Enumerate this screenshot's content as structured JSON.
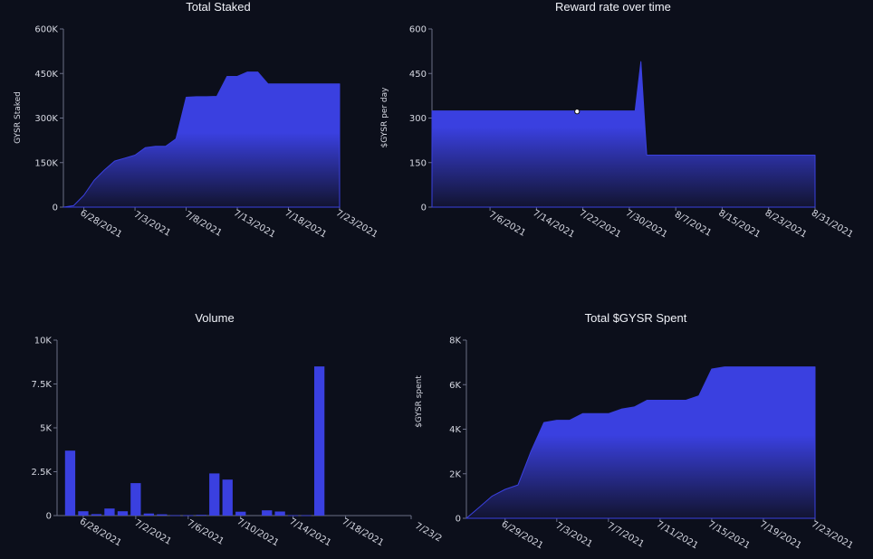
{
  "colors": {
    "background": "#0c0f1b",
    "fill": "#3a40e0",
    "fill_dark": "#121430",
    "axis": "#6a6f86"
  },
  "chart_data": [
    {
      "id": "total-staked",
      "type": "area",
      "title": "Total Staked",
      "ylabel": "GYSR Staked",
      "ylim": [
        0,
        600000
      ],
      "yticks": [
        0,
        150000,
        300000,
        450000,
        600000
      ],
      "ytick_labels": [
        "0",
        "150K",
        "300K",
        "450K",
        "600K"
      ],
      "xlim": [
        "2021-06-26",
        "2021-07-23"
      ],
      "xticks": [
        "2021-06-28",
        "2021-07-03",
        "2021-07-08",
        "2021-07-13",
        "2021-07-18",
        "2021-07-23"
      ],
      "xtick_labels": [
        "6/28/2021",
        "7/3/2021",
        "7/8/2021",
        "7/13/2021",
        "7/18/2021",
        "7/23/2021"
      ],
      "x": [
        "2021-06-26",
        "2021-06-27",
        "2021-06-28",
        "2021-06-29",
        "2021-06-30",
        "2021-07-01",
        "2021-07-02",
        "2021-07-03",
        "2021-07-04",
        "2021-07-05",
        "2021-07-06",
        "2021-07-07",
        "2021-07-08",
        "2021-07-09",
        "2021-07-10",
        "2021-07-11",
        "2021-07-12",
        "2021-07-13",
        "2021-07-14",
        "2021-07-15",
        "2021-07-16",
        "2021-07-17",
        "2021-07-18",
        "2021-07-19",
        "2021-07-20",
        "2021-07-21",
        "2021-07-22",
        "2021-07-23"
      ],
      "values": [
        0,
        5000,
        40000,
        90000,
        125000,
        155000,
        165000,
        175000,
        200000,
        205000,
        205000,
        230000,
        370000,
        372000,
        372000,
        373000,
        440000,
        440000,
        455000,
        455000,
        415000,
        415000,
        415000,
        415000,
        415000,
        415000,
        415000,
        415000
      ]
    },
    {
      "id": "reward-rate",
      "type": "area",
      "title": "Reward rate over time",
      "ylabel": "$GYSR per day",
      "ylim": [
        0,
        600
      ],
      "yticks": [
        0,
        150,
        300,
        450,
        600
      ],
      "ytick_labels": [
        "0",
        "150",
        "300",
        "450",
        "600"
      ],
      "xlim": [
        "2021-06-26",
        "2021-08-31"
      ],
      "xticks": [
        "2021-07-06",
        "2021-07-14",
        "2021-07-22",
        "2021-07-30",
        "2021-08-07",
        "2021-08-15",
        "2021-08-23",
        "2021-08-31"
      ],
      "xtick_labels": [
        "7/6/2021",
        "7/14/2021",
        "7/22/2021",
        "7/30/2021",
        "8/7/2021",
        "8/15/2021",
        "8/23/2021",
        "8/31/2021"
      ],
      "x": [
        "2021-06-26",
        "2021-07-31",
        "2021-08-01",
        "2021-08-02",
        "2021-08-03",
        "2021-08-31"
      ],
      "values": [
        324,
        324,
        490,
        175,
        175,
        175
      ],
      "marker": {
        "x": "2021-07-21",
        "y": 322
      }
    },
    {
      "id": "volume",
      "type": "bar",
      "title": "Volume",
      "ylabel": "",
      "ylim": [
        0,
        10000
      ],
      "yticks": [
        0,
        2500,
        5000,
        7500,
        10000
      ],
      "ytick_labels": [
        "0",
        "2.5K",
        "5K",
        "7.5K",
        "10K"
      ],
      "xlim": [
        "2021-06-26",
        "2021-07-23"
      ],
      "xticks": [
        "2021-06-28",
        "2021-07-02",
        "2021-07-06",
        "2021-07-10",
        "2021-07-14",
        "2021-07-18",
        "2021-07-23"
      ],
      "xtick_labels": [
        "6/28/2021",
        "7/2/2021",
        "7/6/2021",
        "7/10/2021",
        "7/14/2021",
        "7/18/2021",
        "7/23/2"
      ],
      "x": [
        "2021-06-27",
        "2021-06-28",
        "2021-06-29",
        "2021-06-30",
        "2021-07-01",
        "2021-07-02",
        "2021-07-03",
        "2021-07-04",
        "2021-07-05",
        "2021-07-06",
        "2021-07-07",
        "2021-07-08",
        "2021-07-09",
        "2021-07-10",
        "2021-07-11",
        "2021-07-12",
        "2021-07-13",
        "2021-07-14",
        "2021-07-15",
        "2021-07-16",
        "2021-07-17",
        "2021-07-18",
        "2021-07-19",
        "2021-07-20",
        "2021-07-21",
        "2021-07-22"
      ],
      "values": [
        3700,
        250,
        80,
        400,
        250,
        1850,
        120,
        70,
        20,
        20,
        40,
        2400,
        2050,
        220,
        0,
        300,
        230,
        20,
        20,
        8500,
        0,
        0,
        0,
        0,
        0,
        0
      ]
    },
    {
      "id": "gysr-spent",
      "type": "area",
      "title": "Total $GYSR Spent",
      "ylabel": "$GYSR spent",
      "ylim": [
        0,
        8000
      ],
      "yticks": [
        0,
        2000,
        4000,
        6000,
        8000
      ],
      "ytick_labels": [
        "0",
        "2K",
        "4K",
        "6K",
        "8K"
      ],
      "xlim": [
        "2021-06-26",
        "2021-07-23"
      ],
      "xticks": [
        "2021-06-29",
        "2021-07-03",
        "2021-07-07",
        "2021-07-11",
        "2021-07-15",
        "2021-07-19",
        "2021-07-23"
      ],
      "xtick_labels": [
        "6/29/2021",
        "7/3/2021",
        "7/7/2021",
        "7/11/2021",
        "7/15/2021",
        "7/19/2021",
        "7/23/2021"
      ],
      "x": [
        "2021-06-26",
        "2021-06-27",
        "2021-06-28",
        "2021-06-29",
        "2021-06-30",
        "2021-07-01",
        "2021-07-02",
        "2021-07-03",
        "2021-07-04",
        "2021-07-05",
        "2021-07-06",
        "2021-07-07",
        "2021-07-08",
        "2021-07-09",
        "2021-07-10",
        "2021-07-11",
        "2021-07-12",
        "2021-07-13",
        "2021-07-14",
        "2021-07-15",
        "2021-07-16",
        "2021-07-17",
        "2021-07-18",
        "2021-07-19",
        "2021-07-20",
        "2021-07-21",
        "2021-07-22",
        "2021-07-23"
      ],
      "values": [
        0,
        500,
        1000,
        1300,
        1500,
        3000,
        4300,
        4400,
        4400,
        4700,
        4700,
        4700,
        4900,
        5000,
        5300,
        5300,
        5300,
        5300,
        5500,
        6700,
        6800,
        6800,
        6800,
        6800,
        6800,
        6800,
        6800,
        6800
      ]
    }
  ]
}
